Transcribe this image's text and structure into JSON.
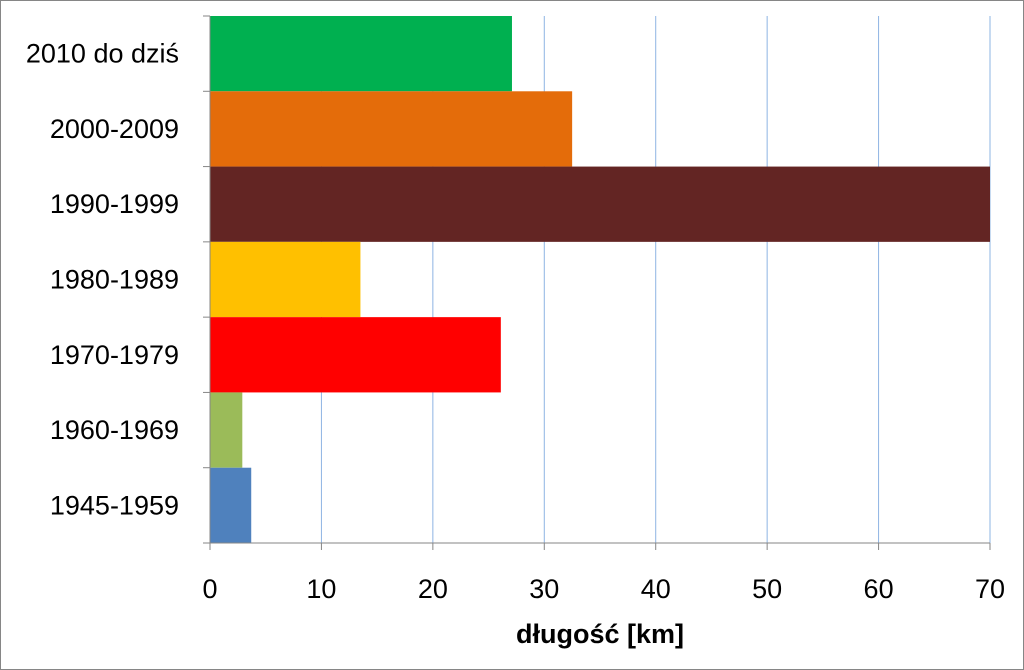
{
  "chart_data": {
    "type": "bar",
    "orientation": "horizontal",
    "categories": [
      "2010 do dziś",
      "2000-2009",
      "1990-1999",
      "1980-1989",
      "1970-1979",
      "1960-1969",
      "1945-1959"
    ],
    "values": [
      27.1,
      32.5,
      70,
      13.5,
      26.1,
      2.9,
      3.7
    ],
    "colors": [
      "#00b050",
      "#e46c0a",
      "#632523",
      "#ffc000",
      "#ff0000",
      "#9bbb59",
      "#4f81bd"
    ],
    "xlabel": "długość [km]",
    "ylabel": "",
    "xlim": [
      0,
      70
    ],
    "xticks": [
      "0",
      "10",
      "20",
      "30",
      "40",
      "50",
      "60",
      "70"
    ],
    "grid": "vertical",
    "legend": "none"
  }
}
